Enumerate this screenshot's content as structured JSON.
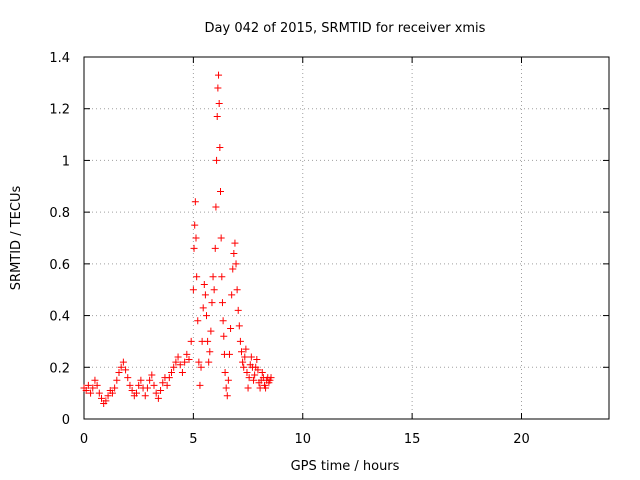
{
  "chart_data": {
    "type": "scatter",
    "title": "Day 042 of 2015, SRMTID for receiver xmis",
    "xlabel": "GPS time / hours",
    "ylabel": "SRMTID / TECUs",
    "xlim": [
      0,
      24
    ],
    "ylim": [
      0,
      1.4
    ],
    "xticks": [
      0,
      5,
      10,
      15,
      20
    ],
    "yticks": [
      0,
      0.2,
      0.4,
      0.6,
      0.8,
      1,
      1.2,
      1.4
    ],
    "grid": true,
    "marker": "+",
    "color": "#ff0000",
    "series": [
      {
        "name": "SRMTID",
        "points": [
          [
            0.0,
            0.12
          ],
          [
            0.1,
            0.11
          ],
          [
            0.2,
            0.13
          ],
          [
            0.3,
            0.1
          ],
          [
            0.4,
            0.12
          ],
          [
            0.5,
            0.15
          ],
          [
            0.6,
            0.13
          ],
          [
            0.7,
            0.1
          ],
          [
            0.8,
            0.08
          ],
          [
            0.9,
            0.06
          ],
          [
            1.0,
            0.07
          ],
          [
            1.1,
            0.09
          ],
          [
            1.2,
            0.11
          ],
          [
            1.3,
            0.1
          ],
          [
            1.4,
            0.12
          ],
          [
            1.5,
            0.15
          ],
          [
            1.6,
            0.18
          ],
          [
            1.7,
            0.2
          ],
          [
            1.8,
            0.22
          ],
          [
            1.9,
            0.19
          ],
          [
            2.0,
            0.16
          ],
          [
            2.1,
            0.13
          ],
          [
            2.2,
            0.11
          ],
          [
            2.3,
            0.09
          ],
          [
            2.4,
            0.1
          ],
          [
            2.5,
            0.13
          ],
          [
            2.6,
            0.15
          ],
          [
            2.7,
            0.12
          ],
          [
            2.8,
            0.09
          ],
          [
            2.9,
            0.12
          ],
          [
            3.0,
            0.15
          ],
          [
            3.1,
            0.17
          ],
          [
            3.2,
            0.13
          ],
          [
            3.3,
            0.1
          ],
          [
            3.4,
            0.08
          ],
          [
            3.5,
            0.11
          ],
          [
            3.6,
            0.14
          ],
          [
            3.7,
            0.16
          ],
          [
            3.8,
            0.13
          ],
          [
            3.9,
            0.16
          ],
          [
            4.0,
            0.18
          ],
          [
            4.1,
            0.2
          ],
          [
            4.2,
            0.22
          ],
          [
            4.3,
            0.24
          ],
          [
            4.4,
            0.21
          ],
          [
            4.5,
            0.18
          ],
          [
            4.6,
            0.22
          ],
          [
            4.7,
            0.25
          ],
          [
            4.8,
            0.23
          ],
          [
            4.9,
            0.3
          ],
          [
            5.0,
            0.5
          ],
          [
            5.03,
            0.66
          ],
          [
            5.06,
            0.75
          ],
          [
            5.09,
            0.84
          ],
          [
            5.12,
            0.7
          ],
          [
            5.15,
            0.55
          ],
          [
            5.2,
            0.38
          ],
          [
            5.25,
            0.22
          ],
          [
            5.3,
            0.13
          ],
          [
            5.35,
            0.2
          ],
          [
            5.4,
            0.3
          ],
          [
            5.45,
            0.43
          ],
          [
            5.5,
            0.52
          ],
          [
            5.55,
            0.48
          ],
          [
            5.6,
            0.4
          ],
          [
            5.65,
            0.3
          ],
          [
            5.7,
            0.22
          ],
          [
            5.75,
            0.26
          ],
          [
            5.8,
            0.34
          ],
          [
            5.85,
            0.45
          ],
          [
            5.9,
            0.55
          ],
          [
            5.95,
            0.5
          ],
          [
            6.0,
            0.66
          ],
          [
            6.03,
            0.82
          ],
          [
            6.06,
            1.0
          ],
          [
            6.09,
            1.17
          ],
          [
            6.12,
            1.28
          ],
          [
            6.15,
            1.33
          ],
          [
            6.18,
            1.22
          ],
          [
            6.21,
            1.05
          ],
          [
            6.24,
            0.88
          ],
          [
            6.27,
            0.7
          ],
          [
            6.3,
            0.55
          ],
          [
            6.33,
            0.45
          ],
          [
            6.36,
            0.38
          ],
          [
            6.39,
            0.32
          ],
          [
            6.42,
            0.25
          ],
          [
            6.45,
            0.18
          ],
          [
            6.5,
            0.12
          ],
          [
            6.55,
            0.09
          ],
          [
            6.6,
            0.15
          ],
          [
            6.65,
            0.25
          ],
          [
            6.7,
            0.35
          ],
          [
            6.75,
            0.48
          ],
          [
            6.8,
            0.58
          ],
          [
            6.85,
            0.64
          ],
          [
            6.9,
            0.68
          ],
          [
            6.95,
            0.6
          ],
          [
            7.0,
            0.5
          ],
          [
            7.05,
            0.42
          ],
          [
            7.1,
            0.36
          ],
          [
            7.15,
            0.3
          ],
          [
            7.2,
            0.26
          ],
          [
            7.25,
            0.22
          ],
          [
            7.3,
            0.2
          ],
          [
            7.35,
            0.24
          ],
          [
            7.4,
            0.27
          ],
          [
            7.45,
            0.18
          ],
          [
            7.5,
            0.12
          ],
          [
            7.55,
            0.16
          ],
          [
            7.6,
            0.21
          ],
          [
            7.65,
            0.24
          ],
          [
            7.7,
            0.2
          ],
          [
            7.75,
            0.15
          ],
          [
            7.8,
            0.17
          ],
          [
            7.85,
            0.2
          ],
          [
            7.9,
            0.23
          ],
          [
            7.95,
            0.19
          ],
          [
            8.0,
            0.14
          ],
          [
            8.05,
            0.12
          ],
          [
            8.1,
            0.15
          ],
          [
            8.15,
            0.18
          ],
          [
            8.2,
            0.16
          ],
          [
            8.25,
            0.13
          ],
          [
            8.3,
            0.12
          ],
          [
            8.35,
            0.15
          ],
          [
            8.4,
            0.16
          ],
          [
            8.45,
            0.14
          ],
          [
            8.5,
            0.15
          ],
          [
            8.55,
            0.16
          ]
        ]
      }
    ]
  }
}
